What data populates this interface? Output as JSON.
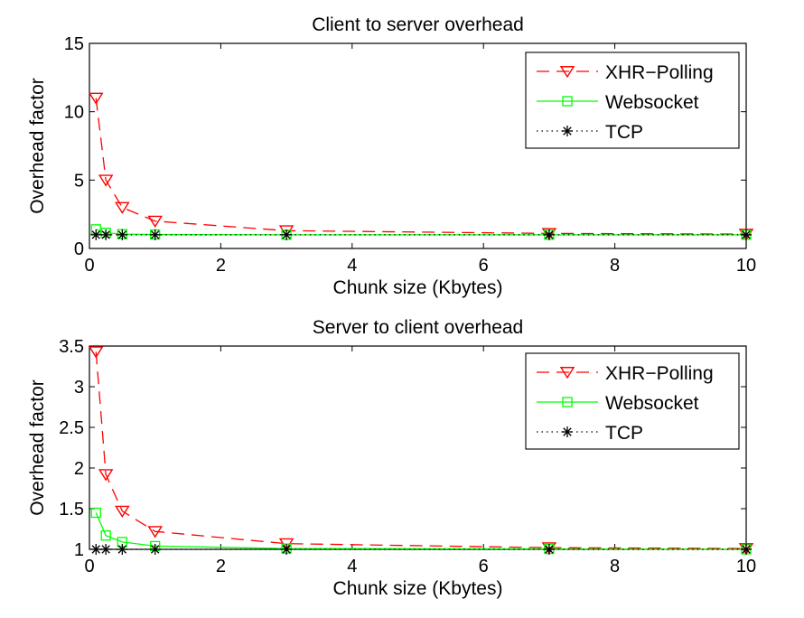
{
  "chart_data": [
    {
      "type": "line",
      "title": "Client to server overhead",
      "xlabel": "Chunk size (Kbytes)",
      "ylabel": "Overhead factor",
      "xlim": [
        0,
        10
      ],
      "ylim": [
        0,
        15
      ],
      "x_ticks": [
        "0",
        "2",
        "4",
        "6",
        "8",
        "10"
      ],
      "y_ticks": [
        "0",
        "5",
        "10",
        "15"
      ],
      "legend_position": "top-right",
      "grid": false,
      "series": [
        {
          "name": "XHR−Polling",
          "color": "#ff0000",
          "line_style": "dashed",
          "marker": "triangle-down",
          "x": [
            0.1,
            0.25,
            0.5,
            1,
            3,
            7,
            10
          ],
          "y": [
            11,
            5,
            3,
            2,
            1.3,
            1.1,
            1.05
          ]
        },
        {
          "name": "Websocket",
          "color": "#00ff00",
          "line_style": "solid",
          "marker": "square",
          "x": [
            0.1,
            0.25,
            0.5,
            1,
            3,
            7,
            10
          ],
          "y": [
            1.4,
            1.15,
            1.05,
            1.02,
            1.0,
            1.0,
            1.0
          ]
        },
        {
          "name": "TCP",
          "color": "#000000",
          "line_style": "dotted",
          "marker": "asterisk",
          "x": [
            0.1,
            0.25,
            0.5,
            1,
            3,
            7,
            10
          ],
          "y": [
            1,
            1,
            1,
            1,
            1,
            1,
            1
          ]
        }
      ]
    },
    {
      "type": "line",
      "title": "Server to client overhead",
      "xlabel": "Chunk size (Kbytes)",
      "ylabel": "Overhead factor",
      "xlim": [
        0,
        10
      ],
      "ylim": [
        1,
        3.5
      ],
      "x_ticks": [
        "0",
        "2",
        "4",
        "6",
        "8",
        "10"
      ],
      "y_ticks": [
        "1",
        "1.5",
        "2",
        "2.5",
        "3",
        "3.5"
      ],
      "legend_position": "top-right",
      "grid": false,
      "series": [
        {
          "name": "XHR−Polling",
          "color": "#ff0000",
          "line_style": "dashed",
          "marker": "triangle-down",
          "x": [
            0.1,
            0.25,
            0.5,
            1,
            3,
            7,
            10
          ],
          "y": [
            3.43,
            1.92,
            1.47,
            1.22,
            1.07,
            1.02,
            1.01
          ]
        },
        {
          "name": "Websocket",
          "color": "#00ff00",
          "line_style": "solid",
          "marker": "square",
          "x": [
            0.1,
            0.25,
            0.5,
            1,
            3,
            7,
            10
          ],
          "y": [
            1.45,
            1.17,
            1.09,
            1.04,
            1.01,
            1.005,
            1.0
          ]
        },
        {
          "name": "TCP",
          "color": "#000000",
          "line_style": "dotted",
          "marker": "asterisk",
          "x": [
            0.1,
            0.25,
            0.5,
            1,
            3,
            7,
            10
          ],
          "y": [
            1,
            1,
            1,
            1,
            1,
            1,
            1
          ]
        }
      ]
    }
  ]
}
